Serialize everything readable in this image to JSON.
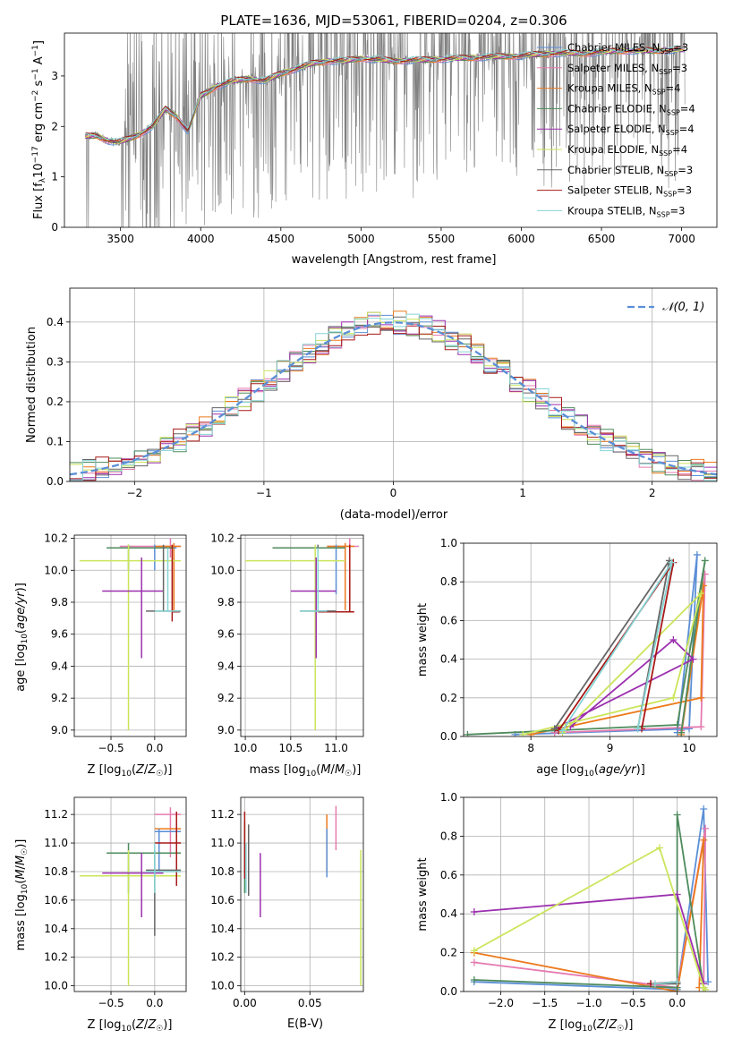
{
  "colors": {
    "chabrier_miles": "#5b8fd6",
    "salpeter_miles": "#e57bb0",
    "kroupa_miles": "#ec7a1c",
    "chabrier_elodie": "#4e8b5c",
    "salpeter_elodie": "#9b2fae",
    "kroupa_elodie": "#cbe55a",
    "chabrier_stelib": "#666666",
    "salpeter_stelib": "#a81818",
    "kroupa_stelib": "#86d4d4",
    "observed": "#808080",
    "gaussian": "#5b8fd6"
  },
  "chart_data": [
    {
      "type": "line",
      "title": "PLATE=1636, MJD=53061, FIBERID=0204, z=0.306",
      "xlabel": "wavelength [Angstrom, rest frame]",
      "ylabel": "Flux [f_λ10^-17 erg cm^-2 s^-1 A^-1]",
      "xlim": [
        3150,
        7220
      ],
      "ylim": [
        0,
        3.85
      ],
      "xticks": [
        3500,
        4000,
        4500,
        5000,
        5500,
        6000,
        6500,
        7000
      ],
      "yticks": [
        0,
        1,
        2,
        3
      ],
      "grid": false,
      "legend_position": "top-right",
      "legend": [
        {
          "label": "Chabrier MILES, N",
          "sub": "SSP",
          "tail": "=3",
          "color": "chabrier_miles"
        },
        {
          "label": "Salpeter MILES, N",
          "sub": "SSP",
          "tail": "=3",
          "color": "salpeter_miles"
        },
        {
          "label": "Kroupa MILES, N",
          "sub": "SSP",
          "tail": "=4",
          "color": "kroupa_miles"
        },
        {
          "label": "Chabrier ELODIE, N",
          "sub": "SSP",
          "tail": "=4",
          "color": "chabrier_elodie"
        },
        {
          "label": "Salpeter ELODIE, N",
          "sub": "SSP",
          "tail": "=4",
          "color": "salpeter_elodie"
        },
        {
          "label": "Kroupa ELODIE, N",
          "sub": "SSP",
          "tail": "=4",
          "color": "kroupa_elodie"
        },
        {
          "label": "Chabrier STELIB, N",
          "sub": "SSP",
          "tail": "=3",
          "color": "chabrier_stelib"
        },
        {
          "label": "Salpeter STELIB, N",
          "sub": "SSP",
          "tail": "=3",
          "color": "salpeter_stelib"
        },
        {
          "label": "Kroupa STELIB, N",
          "sub": "SSP",
          "tail": "=3",
          "color": "kroupa_stelib"
        }
      ],
      "continuum": {
        "x": [
          3280,
          3350,
          3420,
          3480,
          3550,
          3620,
          3700,
          3780,
          3850,
          3920,
          4000,
          4100,
          4200,
          4300,
          4400,
          4500,
          4600,
          4700,
          4800,
          4900,
          5000,
          5200,
          5400,
          5600,
          5800,
          6000,
          6200,
          6400,
          6600,
          6800,
          7000
        ],
        "y": [
          1.8,
          1.82,
          1.72,
          1.68,
          1.75,
          1.85,
          2.0,
          2.35,
          2.2,
          1.9,
          2.6,
          2.8,
          2.9,
          2.95,
          2.9,
          3.05,
          3.15,
          3.25,
          3.3,
          3.3,
          3.35,
          3.3,
          3.32,
          3.35,
          3.38,
          3.4,
          3.45,
          3.45,
          3.5,
          3.5,
          3.52
        ]
      }
    },
    {
      "type": "line",
      "xlabel": "(data-model)/error",
      "ylabel": "Normed distribution",
      "xlim": [
        -2.5,
        2.5
      ],
      "ylim": [
        0,
        0.485
      ],
      "xticks": [
        -2,
        -1,
        0,
        1,
        2
      ],
      "yticks": [
        0.0,
        0.1,
        0.2,
        0.3,
        0.4
      ],
      "grid": true,
      "legend_position": "top-right",
      "legend": [
        {
          "label": "𝒩(0, 1)",
          "color": "gaussian",
          "style": "dashed"
        }
      ],
      "bin_width": 0.1
    },
    {
      "type": "scatter",
      "xlabel": "Z [log₁₀(Z/Z☉)]",
      "ylabel": "age  [log₁₀(age/yr)]",
      "xlim": [
        -0.92,
        0.36
      ],
      "ylim": [
        8.96,
        10.22
      ],
      "xticks": [
        -0.5,
        0.0
      ],
      "yticks": [
        9.0,
        9.2,
        9.4,
        9.6,
        9.8,
        10.0,
        10.2
      ],
      "grid": true,
      "errorbars": [
        {
          "x": 0.18,
          "y": 10.15,
          "xlo": -0.4,
          "xhi": 0.3,
          "ylo": 10.08,
          "yhi": 10.2,
          "color": "salpeter_miles"
        },
        {
          "x": 0.22,
          "y": 10.15,
          "xlo": 0.0,
          "xhi": 0.3,
          "ylo": 9.75,
          "yhi": 10.17,
          "color": "kroupa_miles"
        },
        {
          "x": 0.0,
          "y": 10.14,
          "xlo": -0.35,
          "xhi": 0.25,
          "ylo": 10.0,
          "yhi": 10.16,
          "color": "chabrier_miles"
        },
        {
          "x": -0.3,
          "y": 10.14,
          "xlo": -0.55,
          "xhi": 0.22,
          "ylo": 10.0,
          "yhi": 10.16,
          "color": "chabrier_elodie"
        },
        {
          "x": -0.3,
          "y": 10.06,
          "xlo": -0.86,
          "xhi": 0.3,
          "ylo": 9.0,
          "yhi": 10.16,
          "color": "kroupa_elodie"
        },
        {
          "x": -0.15,
          "y": 9.87,
          "xlo": -0.6,
          "xhi": 0.1,
          "ylo": 9.45,
          "yhi": 10.08,
          "color": "salpeter_elodie"
        },
        {
          "x": 0.2,
          "y": 9.74,
          "xlo": 0.2,
          "xhi": 0.29,
          "ylo": 9.68,
          "yhi": 10.16,
          "color": "salpeter_stelib"
        },
        {
          "x": 0.1,
          "y": 9.745,
          "xlo": -0.1,
          "xhi": 0.3,
          "ylo": 9.74,
          "yhi": 10.16,
          "color": "chabrier_stelib"
        },
        {
          "x": 0.15,
          "y": 9.745,
          "xlo": 0.0,
          "xhi": 0.3,
          "ylo": 9.74,
          "yhi": 10.14,
          "color": "kroupa_stelib"
        }
      ]
    },
    {
      "type": "scatter",
      "xlabel": "mass [log₁₀(M/M☉)]",
      "ylabel": "",
      "xlim": [
        9.95,
        11.3
      ],
      "ylim": [
        8.96,
        10.22
      ],
      "xticks": [
        10.0,
        10.5,
        11.0
      ],
      "yticks": [
        9.0,
        9.2,
        9.4,
        9.6,
        9.8,
        10.0,
        10.2
      ],
      "grid": true,
      "errorbars": [
        {
          "x": 11.15,
          "y": 10.15,
          "xlo": 10.9,
          "xhi": 11.25,
          "ylo": 9.8,
          "yhi": 10.2,
          "color": "salpeter_miles"
        },
        {
          "x": 11.1,
          "y": 10.15,
          "xlo": 10.9,
          "xhi": 11.2,
          "ylo": 9.75,
          "yhi": 10.17,
          "color": "kroupa_miles"
        },
        {
          "x": 11.0,
          "y": 10.14,
          "xlo": 10.8,
          "xhi": 11.1,
          "ylo": 9.85,
          "yhi": 10.16,
          "color": "chabrier_miles"
        },
        {
          "x": 10.8,
          "y": 10.14,
          "xlo": 10.3,
          "xhi": 11.1,
          "ylo": 10.0,
          "yhi": 10.16,
          "color": "chabrier_elodie"
        },
        {
          "x": 10.77,
          "y": 10.06,
          "xlo": 10.0,
          "xhi": 11.1,
          "ylo": 9.0,
          "yhi": 10.16,
          "color": "kroupa_elodie"
        },
        {
          "x": 10.78,
          "y": 9.87,
          "xlo": 10.5,
          "xhi": 11.0,
          "ylo": 9.45,
          "yhi": 10.08,
          "color": "salpeter_elodie"
        },
        {
          "x": 11.15,
          "y": 9.74,
          "xlo": 10.8,
          "xhi": 11.2,
          "ylo": 9.74,
          "yhi": 10.16,
          "color": "salpeter_stelib"
        },
        {
          "x": 10.8,
          "y": 9.745,
          "xlo": 10.6,
          "xhi": 11.0,
          "ylo": 9.74,
          "yhi": 10.16,
          "color": "chabrier_stelib"
        },
        {
          "x": 10.8,
          "y": 9.745,
          "xlo": 10.6,
          "xhi": 10.9,
          "ylo": 9.74,
          "yhi": 10.14,
          "color": "kroupa_stelib"
        }
      ]
    },
    {
      "type": "line",
      "xlabel": "age  [log₁₀(age/yr)]",
      "ylabel": "mass weight",
      "xlim": [
        7.15,
        10.35
      ],
      "ylim": [
        0,
        1.0
      ],
      "xticks": [
        8,
        9,
        10
      ],
      "yticks": [
        0.0,
        0.2,
        0.4,
        0.6,
        0.8,
        1.0
      ],
      "grid": true,
      "series": [
        {
          "color": "chabrier_miles",
          "x": [
            7.8,
            10.0,
            10.1,
            9.85
          ],
          "y": [
            0.01,
            0.04,
            0.94,
            0.02
          ]
        },
        {
          "color": "salpeter_miles",
          "x": [
            8.3,
            10.15,
            10.2,
            9.9
          ],
          "y": [
            0.02,
            0.05,
            0.84,
            0.03
          ]
        },
        {
          "color": "kroupa_miles",
          "x": [
            8.0,
            10.15,
            10.18,
            9.9
          ],
          "y": [
            0.01,
            0.2,
            0.78,
            0.01
          ]
        },
        {
          "color": "chabrier_elodie",
          "x": [
            7.2,
            9.85,
            10.2,
            9.9
          ],
          "y": [
            0.01,
            0.06,
            0.91,
            0.02
          ]
        },
        {
          "color": "salpeter_elodie",
          "x": [
            8.5,
            9.8,
            10.05,
            8.3
          ],
          "y": [
            0.05,
            0.5,
            0.4,
            0.04
          ]
        },
        {
          "color": "kroupa_elodie",
          "x": [
            7.9,
            9.8,
            10.15,
            8.4
          ],
          "y": [
            0.01,
            0.2,
            0.74,
            0.02
          ]
        },
        {
          "color": "chabrier_stelib",
          "x": [
            8.3,
            9.75,
            9.35
          ],
          "y": [
            0.04,
            0.91,
            0.04
          ]
        },
        {
          "color": "salpeter_stelib",
          "x": [
            8.35,
            9.8,
            9.4
          ],
          "y": [
            0.03,
            0.9,
            0.04
          ]
        },
        {
          "color": "kroupa_stelib",
          "x": [
            8.4,
            9.78,
            9.35
          ],
          "y": [
            0.03,
            0.9,
            0.04
          ]
        }
      ]
    },
    {
      "type": "scatter",
      "xlabel": "Z [log₁₀(Z/Z☉)]",
      "ylabel": "mass [log₁₀(M/M☉)]",
      "xlim": [
        -0.92,
        0.36
      ],
      "ylim": [
        9.96,
        11.32
      ],
      "xticks": [
        -0.5,
        0.0
      ],
      "yticks": [
        10.0,
        10.2,
        10.4,
        10.6,
        10.8,
        11.0,
        11.2
      ],
      "grid": true,
      "errorbars": [
        {
          "x": 0.18,
          "y": 11.2,
          "xlo": 0.0,
          "xhi": 0.3,
          "ylo": 10.9,
          "yhi": 11.25,
          "color": "salpeter_miles"
        },
        {
          "x": 0.25,
          "y": 11.1,
          "xlo": 0.0,
          "xhi": 0.3,
          "ylo": 10.8,
          "yhi": 11.2,
          "color": "kroupa_miles"
        },
        {
          "x": 0.05,
          "y": 11.08,
          "xlo": 0.0,
          "xhi": 0.3,
          "ylo": 10.8,
          "yhi": 11.1,
          "color": "chabrier_miles"
        },
        {
          "x": -0.3,
          "y": 10.93,
          "xlo": -0.55,
          "xhi": 0.3,
          "ylo": 10.65,
          "yhi": 11.0,
          "color": "chabrier_elodie"
        },
        {
          "x": -0.3,
          "y": 10.77,
          "xlo": -0.86,
          "xhi": 0.3,
          "ylo": 10.0,
          "yhi": 10.95,
          "color": "kroupa_elodie"
        },
        {
          "x": -0.15,
          "y": 10.79,
          "xlo": -0.6,
          "xhi": 0.1,
          "ylo": 10.48,
          "yhi": 10.93,
          "color": "salpeter_elodie"
        },
        {
          "x": 0.25,
          "y": 11.0,
          "xlo": 0.0,
          "xhi": 0.3,
          "ylo": 10.7,
          "yhi": 11.22,
          "color": "salpeter_stelib"
        },
        {
          "x": 0.0,
          "y": 10.81,
          "xlo": -0.1,
          "xhi": 0.3,
          "ylo": 10.35,
          "yhi": 10.95,
          "color": "chabrier_stelib"
        },
        {
          "x": 0.0,
          "y": 10.8,
          "xlo": -0.1,
          "xhi": 0.3,
          "ylo": 10.65,
          "yhi": 11.0,
          "color": "kroupa_stelib"
        }
      ]
    },
    {
      "type": "scatter",
      "xlabel": "E(B-V)",
      "ylabel": "",
      "xlim": [
        -0.003,
        0.091
      ],
      "ylim": [
        9.96,
        11.32
      ],
      "xticks": [
        0.0,
        0.05
      ],
      "yticks": [
        10.0,
        10.2,
        10.4,
        10.6,
        10.8,
        11.0,
        11.2
      ],
      "grid": true,
      "errorbars": [
        {
          "x": 0.07,
          "y": 11.1,
          "ylo": 10.95,
          "yhi": 11.26,
          "color": "salpeter_miles"
        },
        {
          "x": 0.063,
          "y": 11.0,
          "ylo": 10.8,
          "yhi": 11.2,
          "color": "kroupa_miles"
        },
        {
          "x": 0.063,
          "y": 10.95,
          "ylo": 10.76,
          "yhi": 11.1,
          "color": "chabrier_miles"
        },
        {
          "x": 0.0,
          "y": 10.9,
          "ylo": 10.65,
          "yhi": 11.15,
          "color": "chabrier_elodie"
        },
        {
          "x": 0.089,
          "y": 10.5,
          "ylo": 10.0,
          "yhi": 10.95,
          "color": "kroupa_elodie"
        },
        {
          "x": 0.012,
          "y": 10.7,
          "ylo": 10.48,
          "yhi": 10.93,
          "color": "salpeter_elodie"
        },
        {
          "x": 0.0,
          "y": 11.0,
          "ylo": 10.75,
          "yhi": 11.22,
          "color": "salpeter_stelib"
        },
        {
          "x": 0.003,
          "y": 10.85,
          "ylo": 10.63,
          "yhi": 11.13,
          "color": "chabrier_stelib"
        },
        {
          "x": 0.001,
          "y": 10.85,
          "ylo": 10.65,
          "yhi": 11.0,
          "color": "kroupa_stelib"
        }
      ]
    },
    {
      "type": "line",
      "xlabel": "Z [log₁₀(Z/Z☉)]",
      "ylabel": "mass weight",
      "xlim": [
        -2.42,
        0.45
      ],
      "ylim": [
        0,
        1.0
      ],
      "xticks": [
        -2.0,
        -1.5,
        -1.0,
        -0.5,
        0.0
      ],
      "yticks": [
        0.0,
        0.2,
        0.4,
        0.6,
        0.8,
        1.0
      ],
      "grid": true,
      "series": [
        {
          "color": "chabrier_miles",
          "x": [
            -2.3,
            0.0,
            0.3,
            0.35
          ],
          "y": [
            0.05,
            0.01,
            0.94,
            0.05
          ]
        },
        {
          "color": "salpeter_miles",
          "x": [
            -2.3,
            0.0,
            0.32,
            0.3
          ],
          "y": [
            0.15,
            0.02,
            0.84,
            0.02
          ]
        },
        {
          "color": "kroupa_miles",
          "x": [
            -2.3,
            0.0,
            0.3,
            0.25
          ],
          "y": [
            0.2,
            0.0,
            0.78,
            0.02
          ]
        },
        {
          "color": "chabrier_elodie",
          "x": [
            -2.3,
            0.0,
            0.0,
            0.3
          ],
          "y": [
            0.06,
            0.02,
            0.91,
            0.02
          ]
        },
        {
          "color": "salpeter_elodie",
          "x": [
            -2.3,
            0.0,
            0.3
          ],
          "y": [
            0.41,
            0.5,
            0.04
          ]
        },
        {
          "color": "kroupa_elodie",
          "x": [
            -2.3,
            -0.2,
            0.3,
            0.32
          ],
          "y": [
            0.21,
            0.74,
            0.02,
            0.01
          ]
        },
        {
          "color": "chabrier_stelib",
          "x": [
            -0.3,
            0.0
          ],
          "y": [
            0.04,
            0.04
          ]
        },
        {
          "color": "salpeter_stelib",
          "x": [
            -0.3,
            0.0
          ],
          "y": [
            0.04,
            0.05
          ]
        },
        {
          "color": "kroupa_stelib",
          "x": [
            -0.25,
            0.0
          ],
          "y": [
            0.04,
            0.05
          ]
        }
      ]
    }
  ]
}
